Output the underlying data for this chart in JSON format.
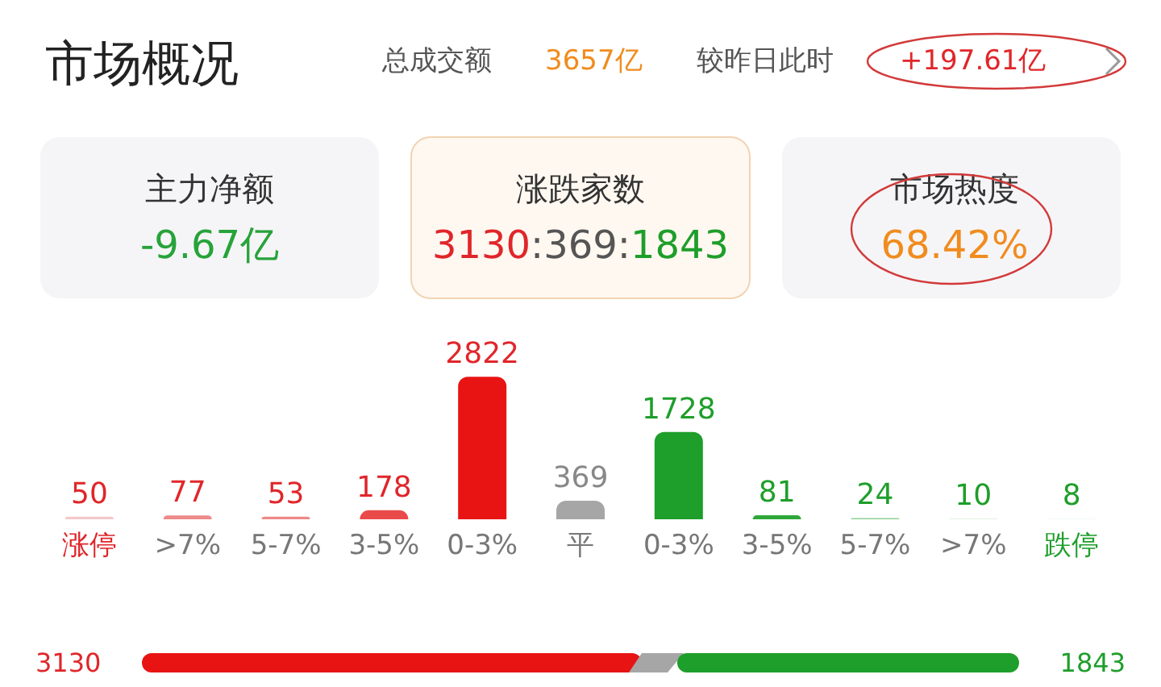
{
  "chart_data": {
    "type": "bar",
    "title": "市场概况",
    "categories": [
      "涨停",
      ">7%",
      "5-7%",
      "3-5%",
      "0-3%",
      "平",
      "0-3%",
      "3-5%",
      "5-7%",
      ">7%",
      "跌停"
    ],
    "values": [
      50,
      77,
      53,
      178,
      2822,
      369,
      1728,
      81,
      24,
      10,
      8
    ],
    "colors": [
      "#f3c9c9",
      "#ee8a8a",
      "#ee8a8a",
      "#ea4a4a",
      "#e81414",
      "#a6a6a6",
      "#1e9e2a",
      "#2fa83a",
      "#8fcf95",
      "#d9eedb",
      "#e6f3e7"
    ],
    "data_labels": true,
    "annotations": [
      "总成交额",
      "3657亿",
      "较昨日此时",
      "+197.61亿",
      "主力净额",
      "-9.67亿",
      "涨跌家数",
      "3130:369:1843",
      "市场热度",
      "68.42%",
      "3130",
      "1843"
    ]
  }
}
